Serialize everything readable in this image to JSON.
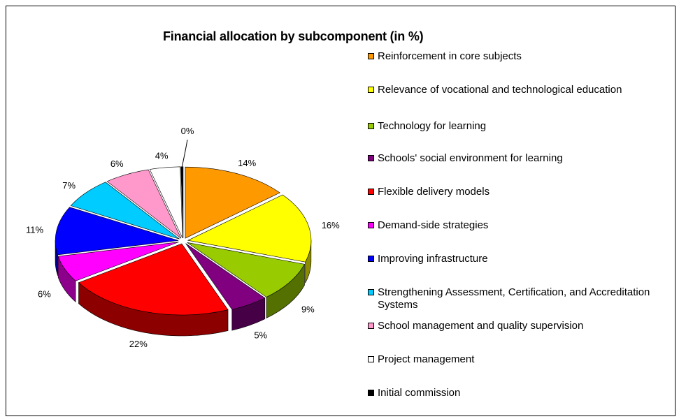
{
  "chart_data": {
    "type": "pie",
    "title": "Financial allocation by subcomponent (in %)",
    "legend_position": "right",
    "slices": [
      {
        "label": "Reinforcement in core subjects",
        "value": 14,
        "value_label": "14%",
        "color": "#ff9900"
      },
      {
        "label": "Relevance of vocational and technological education",
        "value": 16,
        "value_label": "16%",
        "color": "#ffff00"
      },
      {
        "label": "Technology for learning",
        "value": 9,
        "value_label": "9%",
        "color": "#99cc00"
      },
      {
        "label": "Schools' social environment for learning",
        "value": 5,
        "value_label": "5%",
        "color": "#800080"
      },
      {
        "label": "Flexible delivery models",
        "value": 22,
        "value_label": "22%",
        "color": "#ff0000"
      },
      {
        "label": "Demand-side strategies",
        "value": 6,
        "value_label": "6%",
        "color": "#ff00ff"
      },
      {
        "label": "Improving infrastructure",
        "value": 11,
        "value_label": "11%",
        "color": "#0000ff"
      },
      {
        "label": "Strengthening Assessment, Certification, and Accreditation Systems",
        "value": 7,
        "value_label": "7%",
        "color": "#00ccff"
      },
      {
        "label": "School management and quality supervision",
        "value": 6,
        "value_label": "6%",
        "color": "#ff99cc"
      },
      {
        "label": "Project management",
        "value": 4,
        "value_label": "4%",
        "color": "#ffffff"
      },
      {
        "label": "Initial commission",
        "value": 0.3,
        "value_label": "0%",
        "color": "#000000"
      }
    ]
  }
}
